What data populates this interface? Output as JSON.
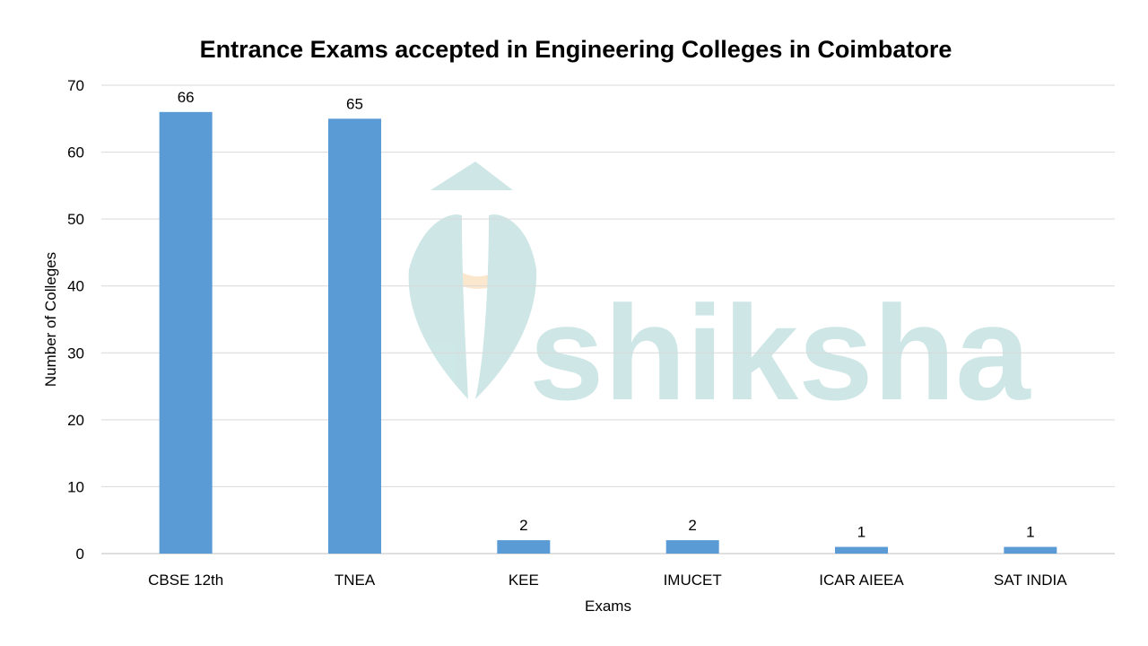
{
  "watermark": {
    "text": "shiksha",
    "color": "#c9e4e4"
  },
  "chart_data": {
    "type": "bar",
    "title": "Entrance Exams accepted in Engineering Colleges in Coimbatore",
    "xlabel": "Exams",
    "ylabel": "Number of Colleges",
    "categories": [
      "CBSE 12th",
      "TNEA",
      "KEE",
      "IMUCET",
      "ICAR AIEEA",
      "SAT INDIA"
    ],
    "values": [
      66,
      65,
      2,
      2,
      1,
      1
    ],
    "data_labels": [
      "66",
      "65",
      "2",
      "2",
      "1",
      "1"
    ],
    "ylim": [
      0,
      70
    ],
    "yticks": [
      0,
      10,
      20,
      30,
      40,
      50,
      60,
      70
    ],
    "grid": true,
    "legend": "none",
    "bar_color": "#5b9bd5",
    "grid_color": "#d9d9d9"
  }
}
